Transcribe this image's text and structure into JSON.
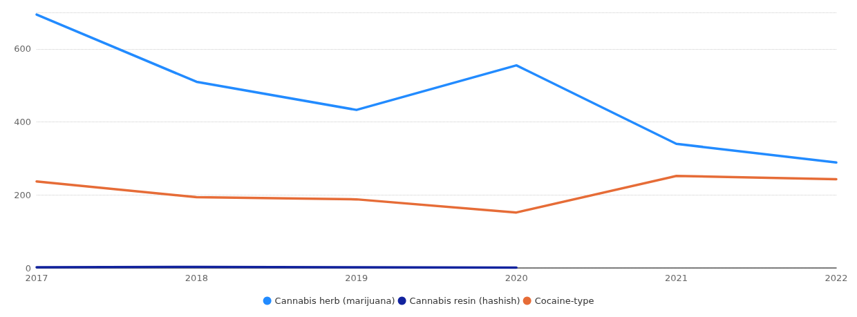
{
  "chart_data": {
    "type": "line",
    "categories": [
      "2017",
      "2018",
      "2019",
      "2020",
      "2021",
      "2022"
    ],
    "series": [
      {
        "name": "Cannabis herb (marijuana)",
        "color": "#228bff",
        "values": [
          694,
          510,
          433,
          555,
          340,
          289
        ]
      },
      {
        "name": "Cannabis resin (hashish)",
        "color": "#12239e",
        "values": [
          2,
          3,
          2,
          1,
          null,
          null
        ]
      },
      {
        "name": "Cocaine-type",
        "color": "#e66c37",
        "values": [
          237,
          194,
          188,
          152,
          252,
          243
        ]
      }
    ],
    "ylim": [
      0,
      700
    ],
    "yticks": [
      0,
      200,
      400,
      600,
      {
        "value": 700,
        "label": null
      }
    ],
    "grid": "y",
    "legend": "bottom",
    "marker": "none",
    "line_style": "solid"
  }
}
